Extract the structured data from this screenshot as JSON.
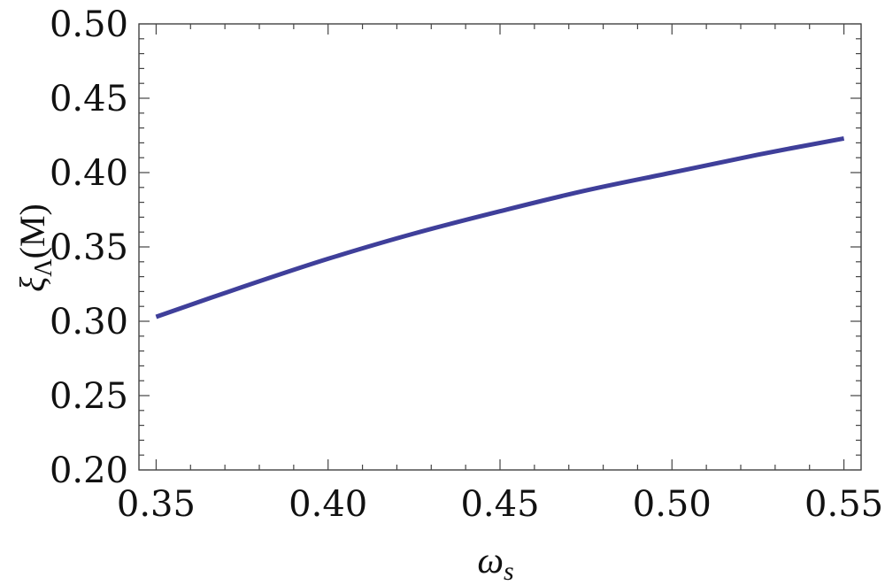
{
  "chart_data": {
    "type": "line",
    "xlabel": "ω",
    "xlabel_sub": "s",
    "ylabel": "ξ",
    "ylabel_sub": "Λ",
    "ylabel_suffix": "(M)",
    "xlim": [
      0.345,
      0.555
    ],
    "ylim": [
      0.2,
      0.5
    ],
    "x_ticks": [
      0.35,
      0.4,
      0.45,
      0.5,
      0.55
    ],
    "x_tick_labels": [
      "0.35",
      "0.40",
      "0.45",
      "0.50",
      "0.55"
    ],
    "y_ticks": [
      0.2,
      0.25,
      0.3,
      0.35,
      0.4,
      0.45,
      0.5
    ],
    "y_tick_labels": [
      "0.20",
      "0.25",
      "0.30",
      "0.35",
      "0.40",
      "0.45",
      "0.50"
    ],
    "grid": false,
    "series": [
      {
        "color": "#3f3f9a",
        "x": [
          0.35,
          0.375,
          0.4,
          0.425,
          0.45,
          0.475,
          0.5,
          0.525,
          0.55
        ],
        "y": [
          0.303,
          0.323,
          0.342,
          0.359,
          0.374,
          0.388,
          0.4,
          0.412,
          0.423
        ]
      }
    ]
  }
}
